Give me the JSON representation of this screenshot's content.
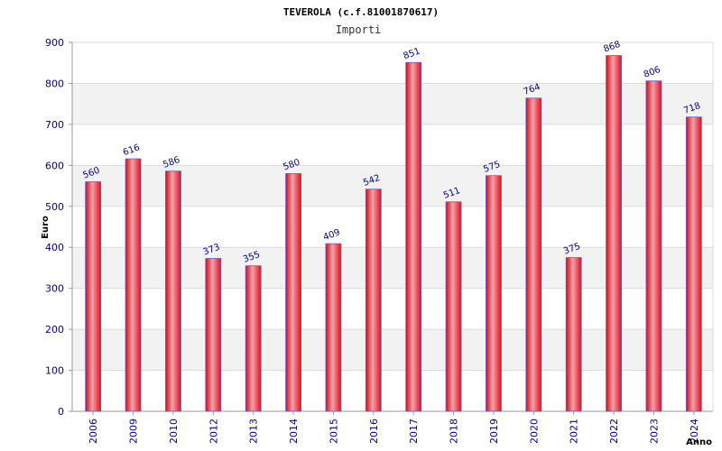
{
  "chart_data": {
    "type": "bar",
    "title": "TEVEROLA (c.f.81001870617)",
    "subtitle": "Importi",
    "xlabel": "Anno",
    "ylabel": "Euro",
    "ylim": [
      0,
      900
    ],
    "yticks": [
      0,
      100,
      200,
      300,
      400,
      500,
      600,
      700,
      800,
      900
    ],
    "grid": true,
    "categories": [
      "2006",
      "2009",
      "2010",
      "2012",
      "2013",
      "2014",
      "2015",
      "2016",
      "2017",
      "2018",
      "2019",
      "2020",
      "2021",
      "2022",
      "2023",
      "2024"
    ],
    "values": [
      560,
      616,
      586,
      373,
      355,
      580,
      409,
      542,
      851,
      511,
      575,
      764,
      375,
      868,
      806,
      718
    ],
    "colors": {
      "bar": "#e8192c",
      "bar_highlight": "#f6a0a8",
      "outline": "#6a5acd",
      "band": "#f2f2f2",
      "text": "#00008b"
    }
  }
}
